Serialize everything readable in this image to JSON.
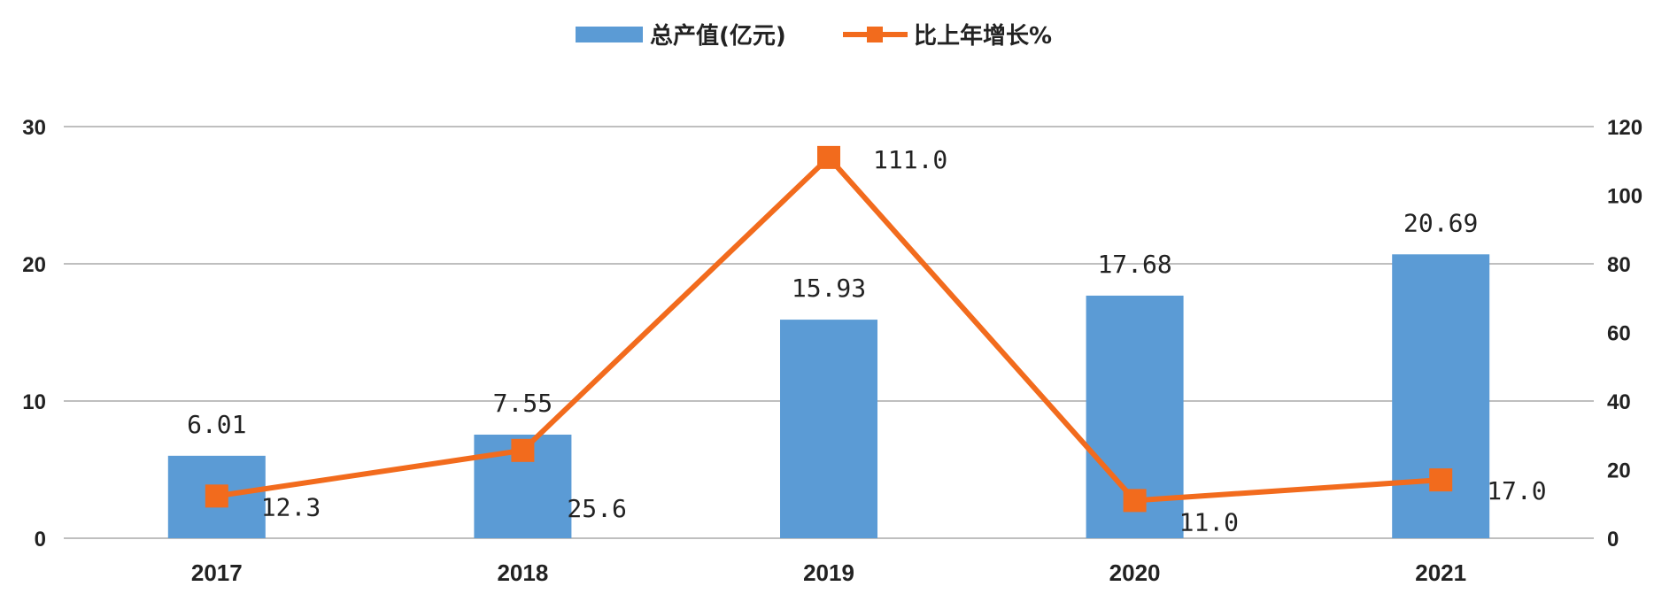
{
  "chart_data": {
    "type": "bar",
    "categories": [
      "2017",
      "2018",
      "2019",
      "2020",
      "2021"
    ],
    "series": [
      {
        "name": "总产值(亿元)",
        "type": "bar",
        "axis": "left",
        "color": "#5b9bd5",
        "values": [
          6.01,
          7.55,
          15.93,
          17.68,
          20.69
        ],
        "labels": [
          "6.01",
          "7.55",
          "15.93",
          "17.68",
          "20.69"
        ]
      },
      {
        "name": "比上年增长%",
        "type": "line",
        "axis": "right",
        "color": "#f26b1d",
        "marker": "square",
        "values": [
          12.3,
          25.6,
          111.0,
          11.0,
          17.0
        ],
        "labels": [
          "12.3",
          "25.6",
          "111.0",
          "11.0",
          "17.0"
        ]
      }
    ],
    "ylim_left": [
      0,
      30
    ],
    "yticks_left": [
      "0",
      "10",
      "20",
      "30"
    ],
    "ylim_right": [
      0,
      120
    ],
    "yticks_right": [
      "0",
      "20",
      "40",
      "60",
      "80",
      "100",
      "120"
    ],
    "grid": true,
    "legend_position": "top-center"
  }
}
